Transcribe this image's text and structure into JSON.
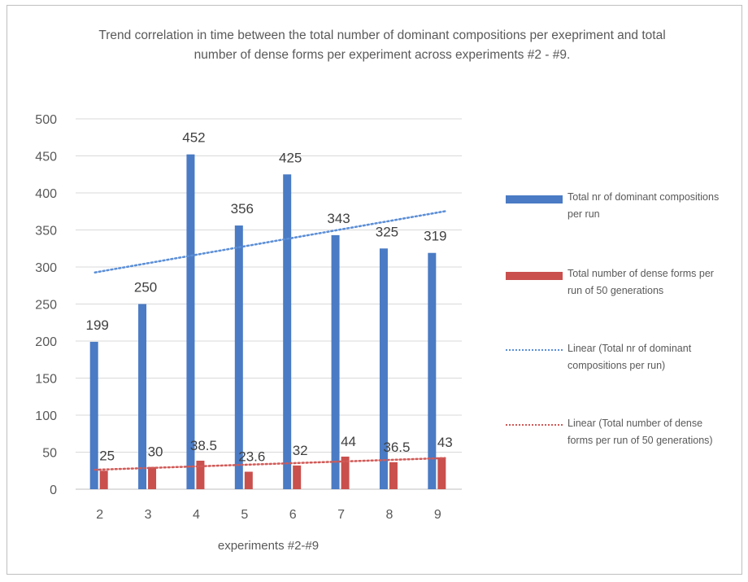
{
  "chart_data": {
    "type": "bar",
    "title": "Trend correlation in time between the total number of dominant compositions per exepriment and total number of dense forms per experiment across experiments #2 - #9.",
    "xlabel": "experiments #2-#9",
    "ylabel": "",
    "categories": [
      "2",
      "3",
      "4",
      "5",
      "6",
      "7",
      "8",
      "9"
    ],
    "ylim": [
      0,
      500
    ],
    "yticks": [
      0,
      50,
      100,
      150,
      200,
      250,
      300,
      350,
      400,
      450,
      500
    ],
    "grid": true,
    "legend_position": "right",
    "series": [
      {
        "name": "Total nr of dominant compositions per run",
        "color": "#4a7bc4",
        "values": [
          199,
          250,
          452,
          356,
          425,
          343,
          325,
          319
        ],
        "labels": [
          "199",
          "250",
          "452",
          "356",
          "425",
          "343",
          "325",
          "319"
        ]
      },
      {
        "name": "Total number of dense forms per run of 50 generations",
        "color": "#c9504d",
        "values": [
          25,
          30,
          38.5,
          23.6,
          32,
          44,
          36.5,
          43
        ],
        "labels": [
          "25",
          "30",
          "38.5",
          "23.6",
          "32",
          "44",
          "36.5",
          "43"
        ]
      }
    ],
    "trendlines": [
      {
        "name": "Linear (Total nr of dominant compositions per run)",
        "type": "linear",
        "color": "#5b8ed6",
        "series_index": 0
      },
      {
        "name": "Linear (Total number of dense forms per run of 50 generations)",
        "type": "linear",
        "color": "#d05a57",
        "series_index": 1
      }
    ]
  }
}
